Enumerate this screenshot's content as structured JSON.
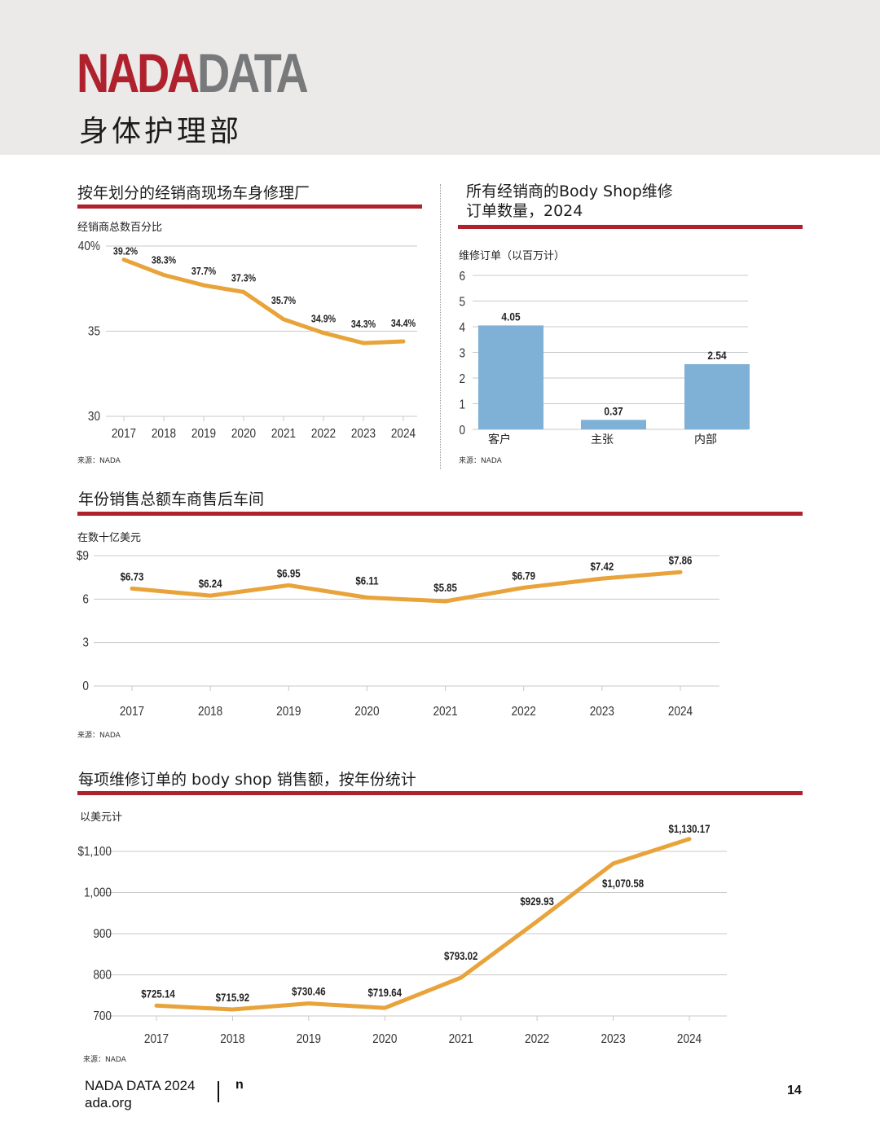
{
  "header": {
    "logo_part1": "NADA",
    "logo_part2": "DATA",
    "title": "身体护理部"
  },
  "colors": {
    "brand_red": "#b0212e",
    "logo_gray": "#77797b",
    "line_orange": "#e8a33a",
    "bar_blue": "#7fb0d6",
    "header_bg": "#ebeae8"
  },
  "charts": [
    {
      "title": "按年划分的经销商现场车身修理厂",
      "unit_label": "经销商总数百分比",
      "source": "来源：NADA"
    },
    {
      "title_line1": "所有经销商的Body Shop维修",
      "title_line2": "订单数量，2024",
      "unit_label": "维修订单（以百万计）",
      "source": "来源：NADA"
    },
    {
      "title": "年份销售总额车商售后车间",
      "unit_label": "在数十亿美元",
      "source": "来源：NADA"
    },
    {
      "title": "每项维修订单的 body shop 销售额，按年份统计",
      "unit_label": "以美元计",
      "source": "来源：NADA"
    }
  ],
  "chart_data": [
    {
      "type": "line",
      "x": [
        "2017",
        "2018",
        "2019",
        "2020",
        "2021",
        "2022",
        "2023",
        "2024"
      ],
      "values": [
        39.2,
        38.3,
        37.7,
        37.3,
        35.7,
        34.9,
        34.3,
        34.4
      ],
      "data_labels": [
        "39.2%",
        "38.3%",
        "37.7%",
        "37.3%",
        "35.7%",
        "34.9%",
        "34.3%",
        "34.4%"
      ],
      "yticks": [
        30,
        35,
        40
      ],
      "ytick_labels": [
        "30",
        "35",
        "40%"
      ],
      "ylim": [
        30,
        40
      ],
      "grid": true
    },
    {
      "type": "bar",
      "categories": [
        "客户",
        "主张",
        "内部"
      ],
      "values": [
        4.05,
        0.37,
        2.54
      ],
      "data_labels": [
        "4.05",
        "0.37",
        "2.54"
      ],
      "yticks": [
        0,
        1,
        2,
        3,
        4,
        5,
        6
      ],
      "ytick_labels": [
        "0",
        "1",
        "2",
        "3",
        "4",
        "5",
        "6"
      ],
      "ylim": [
        0,
        6
      ],
      "grid": true
    },
    {
      "type": "line",
      "x": [
        "2017",
        "2018",
        "2019",
        "2020",
        "2021",
        "2022",
        "2023",
        "2024"
      ],
      "values": [
        6.73,
        6.24,
        6.95,
        6.11,
        5.85,
        6.79,
        7.42,
        7.86
      ],
      "data_labels": [
        "$6.73",
        "$6.24",
        "$6.95",
        "$6.11",
        "$5.85",
        "$6.79",
        "$7.42",
        "$7.86"
      ],
      "yticks": [
        0,
        3,
        6,
        9
      ],
      "ytick_labels": [
        "0",
        "3",
        "6",
        "$9"
      ],
      "ylim": [
        0,
        9
      ],
      "grid": true
    },
    {
      "type": "line",
      "x": [
        "2017",
        "2018",
        "2019",
        "2020",
        "2021",
        "2022",
        "2023",
        "2024"
      ],
      "values": [
        725.14,
        715.92,
        730.46,
        719.64,
        793.02,
        929.93,
        1070.58,
        1130.17
      ],
      "data_labels": [
        "$725.14",
        "$715.92",
        "$730.46",
        "$719.64",
        "$793.02",
        "$929.93",
        "$1,070.58",
        "$1,130.17"
      ],
      "yticks": [
        700,
        800,
        900,
        1000,
        1100
      ],
      "ytick_labels": [
        "700",
        "800",
        "900",
        "1,000",
        "$1,100"
      ],
      "ylim": [
        700,
        1100
      ],
      "grid": true
    }
  ],
  "footer": {
    "brand_line1": "NADA DATA 2024",
    "brand_line2": "ada.org",
    "mark": "n",
    "page_number": "14"
  }
}
